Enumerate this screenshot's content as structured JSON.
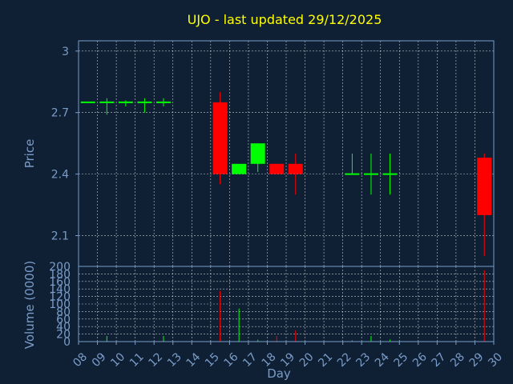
{
  "chart_data": [
    {
      "type": "candlestick",
      "title": "UJO - last updated 29/12/2025",
      "ylabel": "Price",
      "ylim": [
        1.95,
        3.05
      ],
      "yticks": [
        2.1,
        2.4,
        2.7,
        3
      ],
      "ytick_labels": [
        "2.1",
        "2.4",
        "2.7",
        "3"
      ],
      "days": [
        "08",
        "09",
        "10",
        "11",
        "12",
        "13",
        "14",
        "15",
        "16",
        "17",
        "18",
        "19",
        "20",
        "21",
        "22",
        "23",
        "24",
        "25",
        "26",
        "27",
        "28",
        "29",
        "30"
      ],
      "candles": [
        {
          "day": "08",
          "open": 2.75,
          "high": 2.75,
          "low": 2.75,
          "close": 2.75
        },
        {
          "day": "09",
          "open": 2.75,
          "high": 2.77,
          "low": 2.69,
          "close": 2.75
        },
        {
          "day": "10",
          "open": 2.75,
          "high": 2.76,
          "low": 2.73,
          "close": 2.75
        },
        {
          "day": "11",
          "open": 2.75,
          "high": 2.77,
          "low": 2.7,
          "close": 2.75
        },
        {
          "day": "12",
          "open": 2.75,
          "high": 2.77,
          "low": 2.73,
          "close": 2.75
        },
        {
          "day": "15",
          "open": 2.75,
          "high": 2.8,
          "low": 2.35,
          "close": 2.4
        },
        {
          "day": "16",
          "open": 2.4,
          "high": 2.45,
          "low": 2.4,
          "close": 2.45
        },
        {
          "day": "17",
          "open": 2.45,
          "high": 2.55,
          "low": 2.41,
          "close": 2.55
        },
        {
          "day": "18",
          "open": 2.45,
          "high": 2.45,
          "low": 2.4,
          "close": 2.4
        },
        {
          "day": "19",
          "open": 2.45,
          "high": 2.5,
          "low": 2.3,
          "close": 2.4
        },
        {
          "day": "22",
          "open": 2.4,
          "high": 2.5,
          "low": 2.4,
          "close": 2.4
        },
        {
          "day": "23",
          "open": 2.4,
          "high": 2.5,
          "low": 2.3,
          "close": 2.4
        },
        {
          "day": "24",
          "open": 2.4,
          "high": 2.5,
          "low": 2.3,
          "close": 2.4
        },
        {
          "day": "29",
          "open": 2.48,
          "high": 2.5,
          "low": 2.0,
          "close": 2.2
        }
      ],
      "colors": {
        "up": "#00ff00",
        "down": "#ff0000",
        "grid": "#ffffff",
        "axis": "#7a9cc8",
        "title": "#ffff00",
        "label": "#7a9cc8",
        "background": "#0f2035"
      }
    },
    {
      "type": "bar",
      "ylabel": "Volume (0000)",
      "xlabel": "Day",
      "ylim": [
        0,
        200
      ],
      "yticks": [
        0,
        20,
        40,
        60,
        80,
        100,
        120,
        140,
        160,
        180,
        200
      ],
      "ytick_labels": [
        "0",
        "20",
        "40",
        "60",
        "80",
        "100",
        "120",
        "140",
        "160",
        "180",
        "200"
      ],
      "bars": [
        {
          "day": "09",
          "value": 15,
          "dir": "up"
        },
        {
          "day": "12",
          "value": 15,
          "dir": "up"
        },
        {
          "day": "15",
          "value": 135,
          "dir": "down"
        },
        {
          "day": "16",
          "value": 88,
          "dir": "up"
        },
        {
          "day": "17",
          "value": 5,
          "dir": "up"
        },
        {
          "day": "18",
          "value": 15,
          "dir": "down"
        },
        {
          "day": "19",
          "value": 30,
          "dir": "down"
        },
        {
          "day": "22",
          "value": 3,
          "dir": "up"
        },
        {
          "day": "23",
          "value": 15,
          "dir": "up"
        },
        {
          "day": "24",
          "value": 5,
          "dir": "up"
        },
        {
          "day": "29",
          "value": 190,
          "dir": "down"
        }
      ]
    }
  ]
}
